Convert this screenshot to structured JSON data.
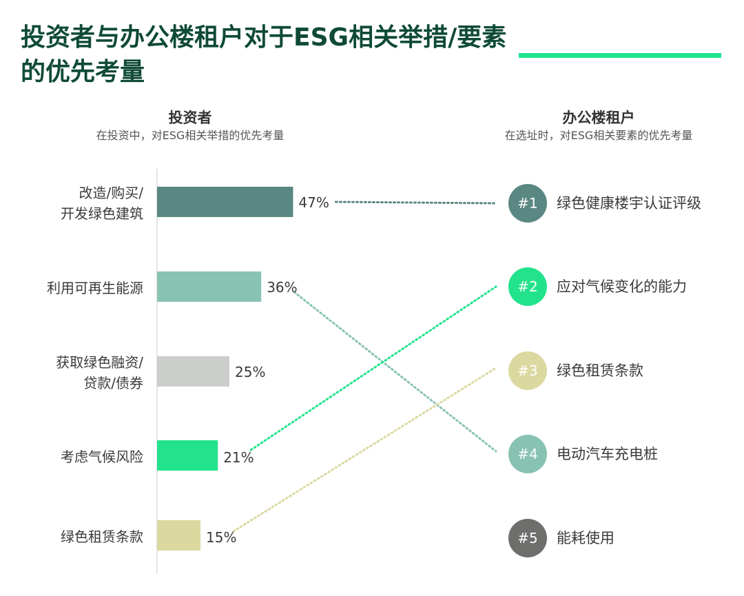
{
  "title": "投资者与办公楼租户对于ESG相关举措/要素的优先考量",
  "investor": {
    "heading": "投资者",
    "subheading": "在投资中，对ESG相关举措的优先考量"
  },
  "tenant": {
    "heading": "办公楼租户",
    "subheading": "在选址时，对ESG相关要素的优先考量"
  },
  "chart_data": {
    "type": "bar",
    "orientation": "horizontal",
    "categories": [
      "改造/购买/开发绿色建筑",
      "利用可再生能源",
      "获取绿色融资/贷款/债券",
      "考虑气候风险",
      "绿色租赁条款"
    ],
    "category_lines": [
      [
        "改造/购买/",
        "开发绿色建筑"
      ],
      [
        "利用可再生能源"
      ],
      [
        "获取绿色融资/",
        "贷款/债券"
      ],
      [
        "考虑气候风险"
      ],
      [
        "绿色租赁条款"
      ]
    ],
    "values": [
      47,
      36,
      25,
      21,
      15
    ],
    "value_labels": [
      "47%",
      "36%",
      "25%",
      "21%",
      "15%"
    ],
    "bar_colors": [
      "#5a8782",
      "#88c2b3",
      "#cccecb",
      "#22e38b",
      "#dbd9a0"
    ],
    "ranking": [
      {
        "rank": "#1",
        "label": "绿色健康楼宇认证评级",
        "color": "#5a8782"
      },
      {
        "rank": "#2",
        "label": "应对气候变化的能力",
        "color": "#22e38b"
      },
      {
        "rank": "#3",
        "label": "绿色租赁条款",
        "color": "#dbd9a0"
      },
      {
        "rank": "#4",
        "label": "电动汽车充电桩",
        "color": "#88c2b3"
      },
      {
        "rank": "#5",
        "label": "能耗使用",
        "color": "#6e6f6d"
      }
    ],
    "links": [
      {
        "from": 0,
        "to": 0,
        "color": "#5a8782"
      },
      {
        "from": 1,
        "to": 3,
        "color": "#88c2b3"
      },
      {
        "from": 3,
        "to": 1,
        "color": "#22e38b"
      },
      {
        "from": 4,
        "to": 2,
        "color": "#dbd9a0"
      }
    ]
  }
}
